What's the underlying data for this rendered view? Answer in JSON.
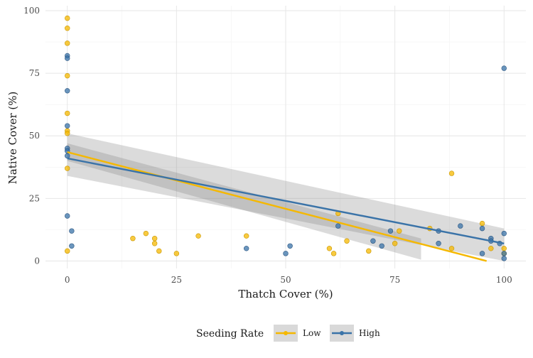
{
  "chart_data": {
    "type": "scatter",
    "title": "",
    "xlabel": "Thatch Cover (%)",
    "ylabel": "Native Cover (%)",
    "xlim": [
      -5,
      105
    ],
    "ylim": [
      -3,
      102
    ],
    "x_ticks": [
      0,
      25,
      50,
      75,
      100
    ],
    "y_ticks": [
      0,
      25,
      50,
      75,
      100
    ],
    "grid": true,
    "legend": {
      "title": "Seeding Rate",
      "position": "bottom",
      "entries": [
        "Low",
        "High"
      ]
    },
    "series": [
      {
        "name": "Low",
        "color": "#F5B800",
        "points": [
          [
            0,
            97
          ],
          [
            0,
            93
          ],
          [
            0,
            87
          ],
          [
            0,
            74
          ],
          [
            0,
            59
          ],
          [
            0,
            52
          ],
          [
            0,
            51
          ],
          [
            0,
            37
          ],
          [
            0,
            4
          ],
          [
            15,
            9
          ],
          [
            18,
            11
          ],
          [
            20,
            9
          ],
          [
            20,
            7
          ],
          [
            21,
            4
          ],
          [
            25,
            3
          ],
          [
            30,
            10
          ],
          [
            41,
            10
          ],
          [
            60,
            5
          ],
          [
            61,
            3
          ],
          [
            62,
            19
          ],
          [
            64,
            8
          ],
          [
            69,
            4
          ],
          [
            75,
            7
          ],
          [
            76,
            12
          ],
          [
            83,
            13
          ],
          [
            88,
            35
          ],
          [
            88,
            5
          ],
          [
            95,
            15
          ],
          [
            97,
            5
          ],
          [
            100,
            5
          ],
          [
            100,
            3
          ]
        ],
        "trend": {
          "x": [
            0,
            96
          ],
          "y": [
            43.5,
            0
          ],
          "ci_x": [
            0,
            81
          ],
          "ci_upper": [
            47,
            9
          ],
          "ci_lower": [
            40,
            0.5
          ]
        }
      },
      {
        "name": "High",
        "color": "#3A73A8",
        "points": [
          [
            0,
            82
          ],
          [
            0,
            81
          ],
          [
            0,
            68
          ],
          [
            0,
            54
          ],
          [
            0,
            45
          ],
          [
            0,
            44
          ],
          [
            0,
            42
          ],
          [
            0,
            18
          ],
          [
            1,
            12
          ],
          [
            1,
            6
          ],
          [
            41,
            5
          ],
          [
            50,
            3
          ],
          [
            51,
            6
          ],
          [
            62,
            14
          ],
          [
            70,
            8
          ],
          [
            72,
            6
          ],
          [
            74,
            12
          ],
          [
            85,
            7
          ],
          [
            85,
            12
          ],
          [
            90,
            14
          ],
          [
            95,
            13
          ],
          [
            95,
            3
          ],
          [
            97,
            9
          ],
          [
            97,
            8
          ],
          [
            99,
            7
          ],
          [
            100,
            77
          ],
          [
            100,
            11
          ],
          [
            100,
            3
          ],
          [
            100,
            1
          ]
        ],
        "trend": {
          "x": [
            0,
            100
          ],
          "y": [
            41,
            7
          ],
          "ci_x": [
            0,
            100
          ],
          "ci_upper": [
            51,
            13
          ],
          "ci_lower": [
            34,
            0
          ]
        }
      }
    ]
  }
}
